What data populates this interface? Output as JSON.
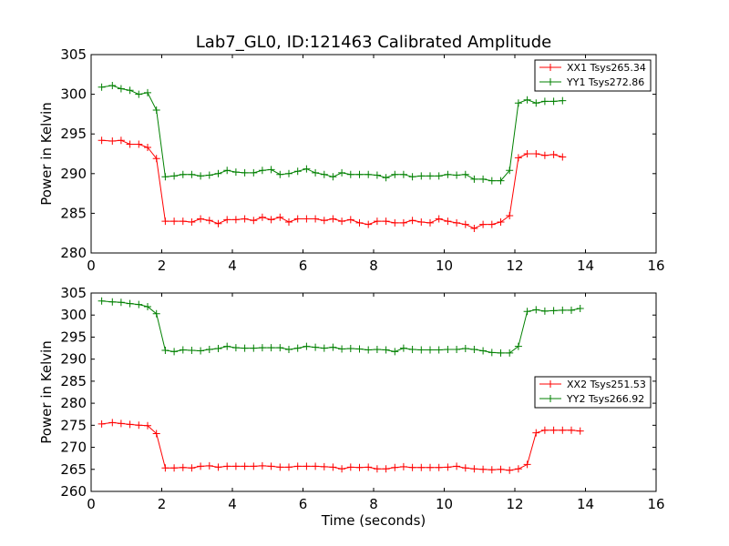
{
  "colors": {
    "red": "#ff0000",
    "green": "#008000",
    "axis": "#000000",
    "background": "#ffffff"
  },
  "chart_data": [
    {
      "type": "line",
      "title": "Lab7_GL0, ID:121463 Calibrated Amplitude",
      "xlabel": "",
      "ylabel": "Power in Kelvin",
      "xlim": [
        0,
        16
      ],
      "ylim": [
        280,
        305
      ],
      "xticks": [
        "0",
        "2",
        "4",
        "6",
        "8",
        "10",
        "12",
        "14",
        "16"
      ],
      "yticks": [
        "280",
        "285",
        "290",
        "295",
        "300",
        "305"
      ],
      "grid": false,
      "legend": "upper-right",
      "x": [
        0.3,
        0.6,
        0.85,
        1.1,
        1.35,
        1.6,
        1.85,
        2.1,
        2.35,
        2.6,
        2.85,
        3.1,
        3.35,
        3.6,
        3.85,
        4.1,
        4.35,
        4.6,
        4.85,
        5.1,
        5.35,
        5.6,
        5.85,
        6.1,
        6.35,
        6.6,
        6.85,
        7.1,
        7.35,
        7.6,
        7.85,
        8.1,
        8.35,
        8.6,
        8.85,
        9.1,
        9.35,
        9.6,
        9.85,
        10.1,
        10.35,
        10.6,
        10.85,
        11.1,
        11.35,
        11.6,
        11.85,
        12.1,
        12.35,
        12.6,
        12.85,
        13.1,
        13.35,
        13.6,
        13.85,
        14.1
      ],
      "series": [
        {
          "name": "XX1 Tsys265.34",
          "color": "#ff0000",
          "values": [
            294.2,
            294.1,
            294.2,
            293.7,
            293.7,
            293.3,
            291.9,
            284.0,
            284.0,
            284.0,
            283.9,
            284.3,
            284.1,
            283.7,
            284.2,
            284.2,
            284.3,
            284.1,
            284.5,
            284.2,
            284.5,
            283.9,
            284.3,
            284.3,
            284.3,
            284.1,
            284.3,
            284.0,
            284.2,
            283.8,
            283.6,
            284.0,
            284.0,
            283.8,
            283.8,
            284.1,
            283.9,
            283.8,
            284.3,
            284.0,
            283.8,
            283.6,
            283.1,
            283.6,
            283.6,
            283.9,
            284.7,
            292.0,
            292.5,
            292.5,
            292.3,
            292.4,
            292.1,
            null,
            null,
            null
          ]
        },
        {
          "name": "YY1 Tsys272.86",
          "color": "#008000",
          "values": [
            300.9,
            301.1,
            300.7,
            300.5,
            300.0,
            300.2,
            298.0,
            289.6,
            289.7,
            289.9,
            289.9,
            289.7,
            289.8,
            290.0,
            290.4,
            290.2,
            290.1,
            290.1,
            290.4,
            290.5,
            289.9,
            290.0,
            290.3,
            290.6,
            290.1,
            289.9,
            289.6,
            290.1,
            289.9,
            289.9,
            289.9,
            289.8,
            289.5,
            289.9,
            289.9,
            289.6,
            289.7,
            289.7,
            289.7,
            289.9,
            289.8,
            289.9,
            289.3,
            289.3,
            289.1,
            289.1,
            290.4,
            298.9,
            299.3,
            298.9,
            299.1,
            299.1,
            299.2,
            null,
            null,
            null
          ]
        }
      ]
    },
    {
      "type": "line",
      "title": "",
      "xlabel": "Time (seconds)",
      "ylabel": "Power in Kelvin",
      "xlim": [
        0,
        16
      ],
      "ylim": [
        260,
        305
      ],
      "xticks": [
        "0",
        "2",
        "4",
        "6",
        "8",
        "10",
        "12",
        "14",
        "16"
      ],
      "yticks": [
        "260",
        "265",
        "270",
        "275",
        "280",
        "285",
        "290",
        "295",
        "300",
        "305"
      ],
      "grid": false,
      "legend": "center-right",
      "x": [
        0.3,
        0.6,
        0.85,
        1.1,
        1.35,
        1.6,
        1.85,
        2.1,
        2.35,
        2.6,
        2.85,
        3.1,
        3.35,
        3.6,
        3.85,
        4.1,
        4.35,
        4.6,
        4.85,
        5.1,
        5.35,
        5.6,
        5.85,
        6.1,
        6.35,
        6.6,
        6.85,
        7.1,
        7.35,
        7.6,
        7.85,
        8.1,
        8.35,
        8.6,
        8.85,
        9.1,
        9.35,
        9.6,
        9.85,
        10.1,
        10.35,
        10.6,
        10.85,
        11.1,
        11.35,
        11.6,
        11.85,
        12.1,
        12.35,
        12.6,
        12.85,
        13.1,
        13.35,
        13.6,
        13.85,
        14.1
      ],
      "series": [
        {
          "name": "XX2 Tsys251.53",
          "color": "#ff0000",
          "values": [
            275.3,
            275.6,
            275.4,
            275.2,
            275.0,
            274.9,
            273.1,
            265.3,
            265.3,
            265.4,
            265.3,
            265.7,
            265.8,
            265.5,
            265.7,
            265.7,
            265.7,
            265.7,
            265.8,
            265.7,
            265.5,
            265.5,
            265.7,
            265.7,
            265.7,
            265.6,
            265.5,
            265.1,
            265.5,
            265.4,
            265.5,
            265.1,
            265.1,
            265.4,
            265.6,
            265.4,
            265.4,
            265.4,
            265.4,
            265.5,
            265.7,
            265.3,
            265.1,
            265.0,
            264.9,
            265.0,
            264.8,
            265.1,
            266.1,
            273.3,
            273.9,
            273.9,
            273.9,
            273.9,
            273.7,
            null
          ],
          "offset_note": null
        },
        {
          "name": "YY2 Tsys266.92",
          "color": "#008000",
          "values": [
            303.2,
            303.0,
            302.9,
            302.6,
            302.4,
            301.9,
            300.3,
            292.0,
            291.7,
            292.1,
            292.0,
            291.9,
            292.2,
            292.4,
            292.9,
            292.6,
            292.5,
            292.5,
            292.6,
            292.6,
            292.6,
            292.2,
            292.5,
            292.9,
            292.7,
            292.5,
            292.7,
            292.3,
            292.4,
            292.3,
            292.1,
            292.2,
            292.1,
            291.7,
            292.5,
            292.2,
            292.1,
            292.1,
            292.1,
            292.2,
            292.2,
            292.4,
            292.2,
            291.9,
            291.5,
            291.4,
            291.4,
            292.9,
            300.8,
            301.2,
            300.9,
            301.0,
            301.1,
            301.1,
            301.5,
            null
          ]
        }
      ]
    }
  ]
}
